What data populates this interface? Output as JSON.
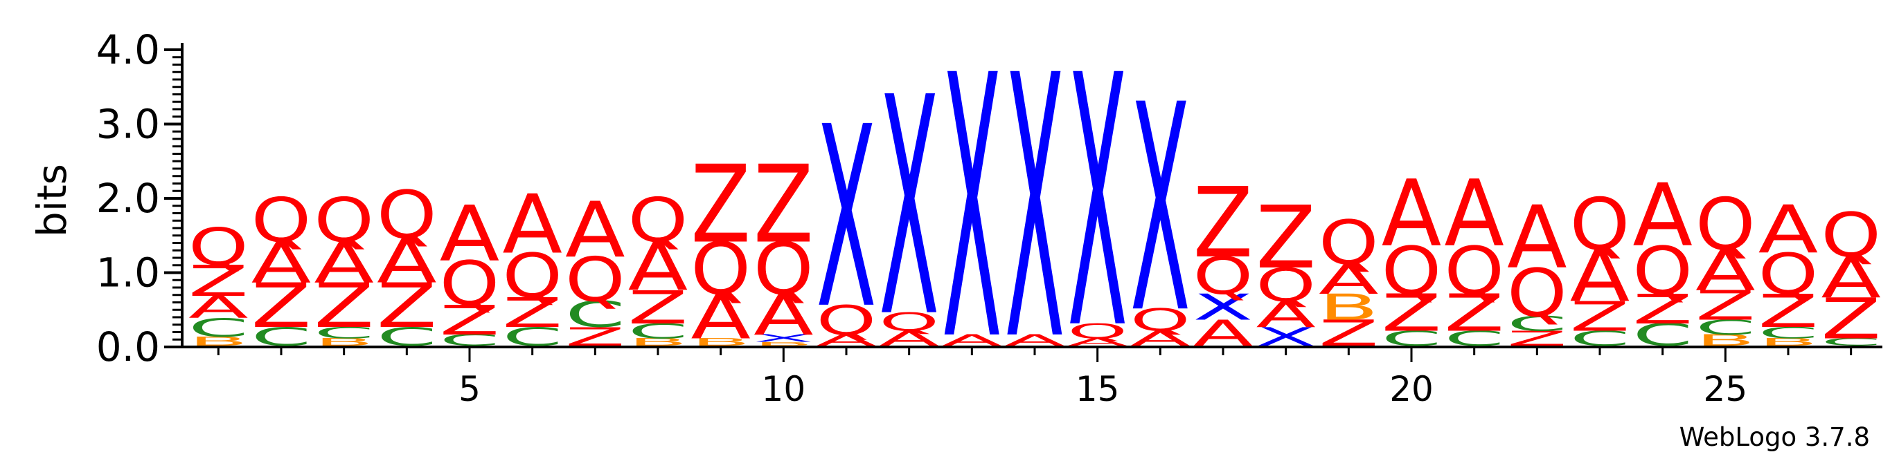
{
  "chart_data": {
    "type": "sequence-logo",
    "ylabel": "bits",
    "ylim": [
      0,
      4.0
    ],
    "y_ticks": [
      "0.0",
      "1.0",
      "2.0",
      "3.0",
      "4.0"
    ],
    "x_ticks": [
      5,
      10,
      15,
      20,
      25
    ],
    "credit": "WebLogo 3.7.8",
    "colors": {
      "Q": "#ff0000",
      "Z": "#ff0000",
      "A": "#ff0000",
      "X": "#0000ff",
      "C": "#228b22",
      "B": "#ff8c00"
    },
    "positions": [
      {
        "pos": 1,
        "stack": [
          [
            "B",
            0.12
          ],
          [
            "C",
            0.25
          ],
          [
            "A",
            0.3
          ],
          [
            "Z",
            0.42
          ],
          [
            "Q",
            0.5
          ]
        ]
      },
      {
        "pos": 2,
        "stack": [
          [
            "C",
            0.25
          ],
          [
            "Z",
            0.6
          ],
          [
            "A",
            0.55
          ],
          [
            "Q",
            0.6
          ]
        ]
      },
      {
        "pos": 3,
        "stack": [
          [
            "B",
            0.1
          ],
          [
            "C",
            0.15
          ],
          [
            "Z",
            0.6
          ],
          [
            "A",
            0.55
          ],
          [
            "Q",
            0.6
          ]
        ]
      },
      {
        "pos": 4,
        "stack": [
          [
            "C",
            0.25
          ],
          [
            "Z",
            0.6
          ],
          [
            "A",
            0.6
          ],
          [
            "Q",
            0.65
          ]
        ]
      },
      {
        "pos": 5,
        "stack": [
          [
            "C",
            0.15
          ],
          [
            "Z",
            0.4
          ],
          [
            "Q",
            0.6
          ],
          [
            "A",
            0.75
          ]
        ]
      },
      {
        "pos": 6,
        "stack": [
          [
            "C",
            0.25
          ],
          [
            "Z",
            0.4
          ],
          [
            "Q",
            0.6
          ],
          [
            "A",
            0.8
          ]
        ]
      },
      {
        "pos": 7,
        "stack": [
          [
            "Z",
            0.25
          ],
          [
            "C",
            0.35
          ],
          [
            "Q",
            0.6
          ],
          [
            "A",
            0.75
          ]
        ]
      },
      {
        "pos": 8,
        "stack": [
          [
            "B",
            0.1
          ],
          [
            "C",
            0.2
          ],
          [
            "Z",
            0.45
          ],
          [
            "A",
            0.65
          ],
          [
            "Q",
            0.6
          ]
        ]
      },
      {
        "pos": 9,
        "stack": [
          [
            "B",
            0.1
          ],
          [
            "A",
            0.6
          ],
          [
            "Q",
            0.7
          ],
          [
            "Z",
            1.05
          ]
        ]
      },
      {
        "pos": 10,
        "stack": [
          [
            "B",
            0.05
          ],
          [
            "X",
            0.1
          ],
          [
            "A",
            0.55
          ],
          [
            "Q",
            0.7
          ],
          [
            "Z",
            1.05
          ]
        ]
      },
      {
        "pos": 11,
        "stack": [
          [
            "A",
            0.15
          ],
          [
            "Q",
            0.4
          ],
          [
            "X",
            2.45
          ]
        ]
      },
      {
        "pos": 12,
        "stack": [
          [
            "A",
            0.2
          ],
          [
            "Q",
            0.25
          ],
          [
            "X",
            2.95
          ]
        ]
      },
      {
        "pos": 13,
        "stack": [
          [
            "A",
            0.15
          ],
          [
            "X",
            3.55
          ]
        ]
      },
      {
        "pos": 14,
        "stack": [
          [
            "A",
            0.15
          ],
          [
            "X",
            3.55
          ]
        ]
      },
      {
        "pos": 15,
        "stack": [
          [
            "A",
            0.1
          ],
          [
            "Q",
            0.2
          ],
          [
            "X",
            3.4
          ]
        ]
      },
      {
        "pos": 16,
        "stack": [
          [
            "A",
            0.2
          ],
          [
            "Q",
            0.3
          ],
          [
            "X",
            2.8
          ]
        ]
      },
      {
        "pos": 17,
        "stack": [
          [
            "A",
            0.35
          ],
          [
            "X",
            0.35
          ],
          [
            "Q",
            0.5
          ],
          [
            "Z",
            0.95
          ]
        ]
      },
      {
        "pos": 18,
        "stack": [
          [
            "X",
            0.25
          ],
          [
            "A",
            0.35
          ],
          [
            "Q",
            0.45
          ],
          [
            "Z",
            0.85
          ]
        ]
      },
      {
        "pos": 19,
        "stack": [
          [
            "Z",
            0.35
          ],
          [
            "B",
            0.35
          ],
          [
            "A",
            0.4
          ],
          [
            "Q",
            0.6
          ]
        ]
      },
      {
        "pos": 20,
        "stack": [
          [
            "C",
            0.2
          ],
          [
            "Z",
            0.5
          ],
          [
            "Q",
            0.65
          ],
          [
            "A",
            0.9
          ]
        ]
      },
      {
        "pos": 21,
        "stack": [
          [
            "C",
            0.2
          ],
          [
            "Z",
            0.5
          ],
          [
            "Q",
            0.65
          ],
          [
            "A",
            0.9
          ]
        ]
      },
      {
        "pos": 22,
        "stack": [
          [
            "Z",
            0.2
          ],
          [
            "C",
            0.2
          ],
          [
            "Q",
            0.65
          ],
          [
            "A",
            0.85
          ]
        ]
      },
      {
        "pos": 23,
        "stack": [
          [
            "C",
            0.2
          ],
          [
            "Z",
            0.4
          ],
          [
            "A",
            0.7
          ],
          [
            "Q",
            0.7
          ]
        ]
      },
      {
        "pos": 24,
        "stack": [
          [
            "C",
            0.3
          ],
          [
            "Z",
            0.4
          ],
          [
            "Q",
            0.65
          ],
          [
            "A",
            0.85
          ]
        ]
      },
      {
        "pos": 25,
        "stack": [
          [
            "B",
            0.15
          ],
          [
            "C",
            0.2
          ],
          [
            "Z",
            0.4
          ],
          [
            "A",
            0.55
          ],
          [
            "Q",
            0.7
          ]
        ]
      },
      {
        "pos": 26,
        "stack": [
          [
            "B",
            0.1
          ],
          [
            "C",
            0.15
          ],
          [
            "Z",
            0.45
          ],
          [
            "Q",
            0.55
          ],
          [
            "A",
            0.65
          ]
        ]
      },
      {
        "pos": 27,
        "stack": [
          [
            "C",
            0.1
          ],
          [
            "Z",
            0.55
          ],
          [
            "A",
            0.55
          ],
          [
            "Q",
            0.6
          ]
        ]
      }
    ]
  }
}
